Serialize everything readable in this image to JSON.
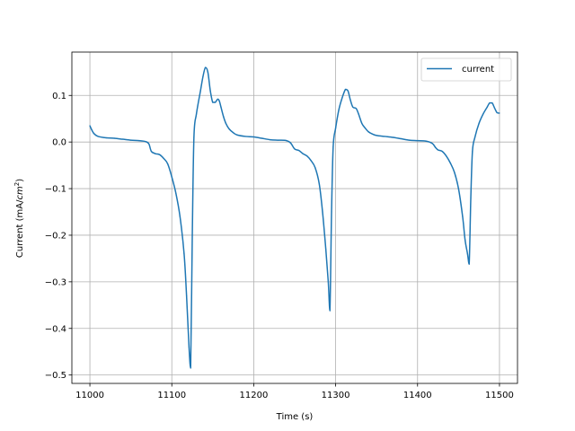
{
  "chart_data": {
    "type": "line",
    "xlabel": "Time (s)",
    "ylabel_prefix": "Current (mA/",
    "ylabel_unit": "cm",
    "ylabel_exp": "2",
    "ylabel_suffix": ")",
    "xlim": [
      10978,
      11522
    ],
    "ylim": [
      -0.518,
      0.193
    ],
    "xticks": [
      11000,
      11100,
      11200,
      11300,
      11400,
      11500
    ],
    "xtick_labels": [
      "11000",
      "11100",
      "11200",
      "11300",
      "11400",
      "11500"
    ],
    "yticks": [
      -0.5,
      -0.4,
      -0.3,
      -0.2,
      -0.1,
      0.0,
      0.1
    ],
    "ytick_labels": [
      "−0.5",
      "−0.4",
      "−0.3",
      "−0.2",
      "−0.1",
      "0.0",
      "0.1"
    ],
    "grid": true,
    "legend": {
      "placement": "upper-right"
    },
    "colors": {
      "series": "#1f77b4",
      "grid": "#b0b0b0",
      "axes": "#000000"
    },
    "series": [
      {
        "name": "current",
        "x": [
          11000,
          11002,
          11005,
          11010,
          11020,
          11030,
          11040,
          11050,
          11060,
          11068,
          11072,
          11075,
          11080,
          11085,
          11090,
          11095,
          11100,
          11105,
          11110,
          11115,
          11118,
          11121,
          11123,
          11125,
          11127,
          11130,
          11135,
          11138,
          11141,
          11144,
          11147,
          11150,
          11153,
          11156,
          11158,
          11160,
          11163,
          11166,
          11170,
          11175,
          11180,
          11190,
          11200,
          11210,
          11220,
          11230,
          11240,
          11245,
          11250,
          11255,
          11260,
          11265,
          11270,
          11275,
          11280,
          11284,
          11288,
          11291,
          11293,
          11295,
          11297,
          11300,
          11304,
          11308,
          11312,
          11315,
          11318,
          11321,
          11325,
          11328,
          11332,
          11336,
          11340,
          11345,
          11350,
          11360,
          11370,
          11380,
          11390,
          11400,
          11410,
          11418,
          11422,
          11425,
          11430,
          11435,
          11440,
          11445,
          11450,
          11455,
          11458,
          11461,
          11463,
          11465,
          11467,
          11470,
          11475,
          11480,
          11485,
          11488,
          11491,
          11494,
          11497,
          11500
        ],
        "y": [
          0.035,
          0.027,
          0.018,
          0.012,
          0.009,
          0.008,
          0.006,
          0.004,
          0.003,
          0.001,
          -0.004,
          -0.02,
          -0.025,
          -0.027,
          -0.035,
          -0.047,
          -0.075,
          -0.11,
          -0.16,
          -0.24,
          -0.33,
          -0.44,
          -0.485,
          -0.2,
          0.01,
          0.06,
          0.11,
          0.14,
          0.16,
          0.15,
          0.11,
          0.085,
          0.085,
          0.092,
          0.088,
          0.075,
          0.055,
          0.04,
          0.028,
          0.02,
          0.015,
          0.012,
          0.011,
          0.008,
          0.005,
          0.004,
          0.003,
          -0.002,
          -0.015,
          -0.018,
          -0.025,
          -0.03,
          -0.04,
          -0.055,
          -0.09,
          -0.15,
          -0.23,
          -0.3,
          -0.362,
          -0.15,
          -0.01,
          0.03,
          0.07,
          0.095,
          0.113,
          0.11,
          0.09,
          0.075,
          0.072,
          0.06,
          0.04,
          0.03,
          0.022,
          0.017,
          0.014,
          0.012,
          0.01,
          0.007,
          0.004,
          0.003,
          0.002,
          -0.003,
          -0.012,
          -0.017,
          -0.02,
          -0.03,
          -0.045,
          -0.065,
          -0.1,
          -0.16,
          -0.21,
          -0.24,
          -0.262,
          -0.12,
          -0.02,
          0.01,
          0.04,
          0.06,
          0.075,
          0.084,
          0.084,
          0.073,
          0.063,
          0.062
        ]
      }
    ]
  }
}
